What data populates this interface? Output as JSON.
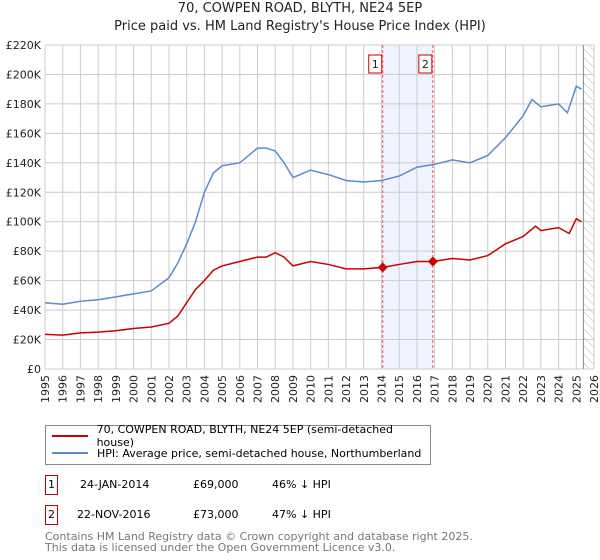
{
  "chart_data": {
    "type": "line",
    "title": "70, COWPEN ROAD, BLYTH, NE24 5EP",
    "subtitle": "Price paid vs. HM Land Registry's House Price Index (HPI)",
    "xlim": [
      1995,
      2026
    ],
    "ylim": [
      0,
      220000
    ],
    "x_ticks": [
      "1995",
      "1996",
      "1997",
      "1998",
      "1999",
      "2000",
      "2001",
      "2002",
      "2003",
      "2004",
      "2005",
      "2006",
      "2007",
      "2008",
      "2009",
      "2010",
      "2011",
      "2012",
      "2013",
      "2014",
      "2015",
      "2016",
      "2017",
      "2018",
      "2019",
      "2020",
      "2021",
      "2022",
      "2023",
      "2024",
      "2025",
      "2026"
    ],
    "y_ticks": [
      {
        "v": 0,
        "label": "£0"
      },
      {
        "v": 20000,
        "label": "£20K"
      },
      {
        "v": 40000,
        "label": "£40K"
      },
      {
        "v": 60000,
        "label": "£60K"
      },
      {
        "v": 80000,
        "label": "£80K"
      },
      {
        "v": 100000,
        "label": "£100K"
      },
      {
        "v": 120000,
        "label": "£120K"
      },
      {
        "v": 140000,
        "label": "£140K"
      },
      {
        "v": 160000,
        "label": "£160K"
      },
      {
        "v": 180000,
        "label": "£180K"
      },
      {
        "v": 200000,
        "label": "£200K"
      },
      {
        "v": 220000,
        "label": "£220K"
      }
    ],
    "grid": true,
    "series": [
      {
        "name": "70, COWPEN ROAD, BLYTH, NE24 5EP (semi-detached house)",
        "color": "#cc0000",
        "x": [
          1995,
          1996,
          1997,
          1998,
          1999,
          2000,
          2001,
          2002,
          2002.5,
          2003,
          2003.5,
          2004,
          2004.5,
          2005,
          2006,
          2007,
          2007.5,
          2008,
          2008.5,
          2009,
          2010,
          2011,
          2012,
          2013,
          2014.07,
          2015,
          2016,
          2016.9,
          2018,
          2019,
          2020,
          2021,
          2022,
          2022.7,
          2023,
          2024,
          2024.6,
          2025,
          2025.3
        ],
        "y": [
          23500,
          23000,
          24500,
          25000,
          26000,
          27500,
          28500,
          31000,
          36000,
          45000,
          54000,
          60000,
          67000,
          70000,
          73000,
          76000,
          76000,
          79000,
          76000,
          70000,
          73000,
          71000,
          68000,
          68000,
          69000,
          71000,
          73000,
          73000,
          75000,
          74000,
          77000,
          85000,
          90000,
          97000,
          94000,
          96000,
          92000,
          102000,
          100000
        ]
      },
      {
        "name": "HPI: Average price, semi-detached house, Northumberland",
        "color": "#5b8ccc",
        "x": [
          1995,
          1996,
          1997,
          1998,
          1999,
          2000,
          2001,
          2002,
          2002.5,
          2003,
          2003.5,
          2004,
          2004.5,
          2005,
          2006,
          2007,
          2007.5,
          2008,
          2008.5,
          2009,
          2010,
          2011,
          2012,
          2013,
          2014,
          2015,
          2016,
          2017,
          2018,
          2019,
          2020,
          2021,
          2022,
          2022.5,
          2023,
          2024,
          2024.5,
          2025,
          2025.3
        ],
        "y": [
          45000,
          44000,
          46000,
          47000,
          49000,
          51000,
          53000,
          62000,
          72000,
          85000,
          100000,
          120000,
          133000,
          138000,
          140000,
          150000,
          150000,
          148000,
          140000,
          130000,
          135000,
          132000,
          128000,
          127000,
          128000,
          131000,
          137000,
          139000,
          142000,
          140000,
          145000,
          157000,
          172000,
          183000,
          178000,
          180000,
          174000,
          192000,
          190000
        ]
      }
    ],
    "sales": [
      {
        "n": "1",
        "x": 2014.07,
        "price": 69000,
        "date": "24-JAN-2014",
        "price_label": "£69,000",
        "hpi": "46% ↓ HPI"
      },
      {
        "n": "2",
        "x": 2016.9,
        "price": 73000,
        "date": "22-NOV-2016",
        "price_label": "£73,000",
        "hpi": "47% ↓ HPI"
      }
    ],
    "data_end": 2025.4
  },
  "footer": {
    "line1": "Contains HM Land Registry data © Crown copyright and database right 2025.",
    "line2": "This data is licensed under the Open Government Licence v3.0."
  }
}
